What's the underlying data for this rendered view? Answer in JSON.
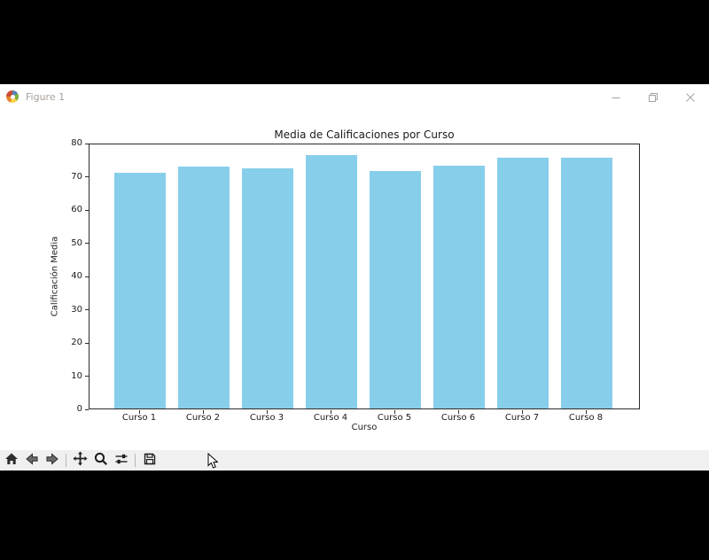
{
  "window": {
    "title": "Figure 1"
  },
  "chart_data": {
    "type": "bar",
    "title": "Media de Calificaciones por Curso",
    "xlabel": "Curso",
    "ylabel": "Calificación Media",
    "categories": [
      "Curso 1",
      "Curso 2",
      "Curso 3",
      "Curso 4",
      "Curso 5",
      "Curso 6",
      "Curso 7",
      "Curso 8"
    ],
    "values": [
      70.9,
      72.9,
      72.3,
      76.3,
      71.6,
      73.2,
      75.4,
      75.6
    ],
    "ylim": [
      0,
      80
    ],
    "yticks": [
      0,
      10,
      20,
      30,
      40,
      50,
      60,
      70,
      80
    ],
    "bar_color": "#87ceeb",
    "grid": false,
    "legend": null
  },
  "toolbar": {
    "buttons": [
      "home",
      "back",
      "forward",
      "pan",
      "zoom",
      "configure-subplots",
      "save"
    ]
  },
  "colors": {
    "bar": "#87ceeb",
    "spine": "#2b2b2b",
    "toolbar_bg": "#f0f0f0",
    "outside_bg": "#000000",
    "title_text": "#a8a09a"
  }
}
